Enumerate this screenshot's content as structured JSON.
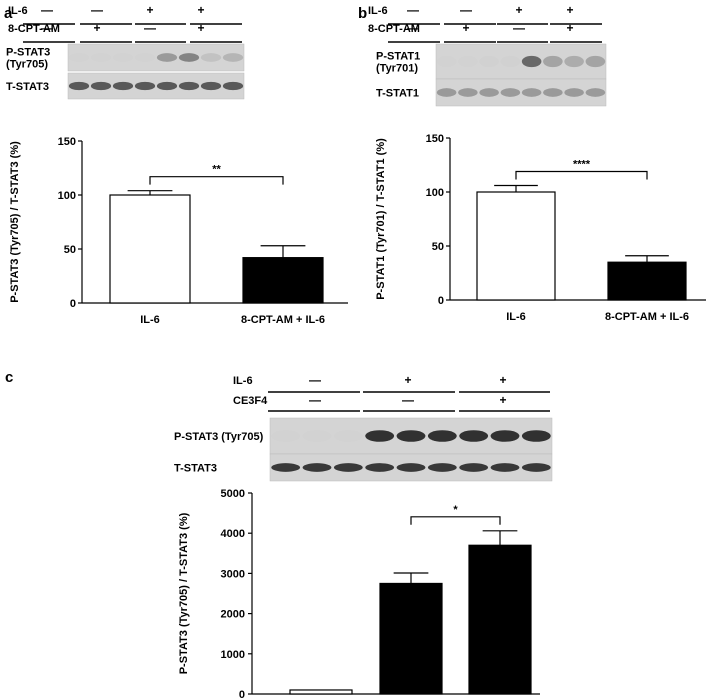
{
  "panels": [
    {
      "id": "a",
      "letter": "a",
      "conditions": [
        {
          "label": "IL-6",
          "signs": [
            "—",
            "—",
            "+",
            "+"
          ]
        },
        {
          "label": "8-CPT-AM",
          "signs": [
            "—",
            "+",
            "—",
            "+"
          ]
        }
      ],
      "blots": [
        {
          "label_lines": [
            "P-STAT3",
            "(Tyr705)"
          ],
          "intensities": [
            0.03,
            0.03,
            0.05,
            0.05,
            0.55,
            0.65,
            0.3,
            0.4
          ]
        },
        {
          "label_lines": [
            "T-STAT3"
          ],
          "intensities": [
            0.8,
            0.8,
            0.8,
            0.8,
            0.8,
            0.8,
            0.8,
            0.8
          ]
        }
      ]
    },
    {
      "id": "b",
      "letter": "b",
      "conditions": [
        {
          "label": "IL-6",
          "signs": [
            "—",
            "—",
            "+",
            "+"
          ]
        },
        {
          "label": "8-CPT-AM",
          "signs": [
            "—",
            "+",
            "—",
            "+"
          ]
        }
      ],
      "blots": [
        {
          "label_lines": [
            "P-STAT1",
            "(Tyr701)"
          ],
          "intensities": [
            0.05,
            0.05,
            0.08,
            0.08,
            0.75,
            0.5,
            0.45,
            0.5
          ]
        },
        {
          "label_lines": [
            "T-STAT1"
          ],
          "intensities": [
            0.55,
            0.55,
            0.55,
            0.55,
            0.55,
            0.55,
            0.55,
            0.55
          ]
        }
      ]
    },
    {
      "id": "c",
      "letter": "c",
      "conditions": [
        {
          "label": "IL-6",
          "signs": [
            "—",
            "+",
            "+"
          ]
        },
        {
          "label": "CE3F4",
          "signs": [
            "—",
            "—",
            "+"
          ]
        }
      ],
      "blots": [
        {
          "label_lines": [
            "P-STAT3 (Tyr705)"
          ],
          "intensities": [
            0.03,
            0.03,
            0.03,
            0.92,
            0.92,
            0.92,
            0.92,
            0.92,
            0.92
          ]
        },
        {
          "label_lines": [
            "T-STAT3"
          ],
          "intensities": [
            0.9,
            0.9,
            0.9,
            0.9,
            0.9,
            0.9,
            0.9,
            0.9,
            0.9
          ]
        }
      ]
    }
  ],
  "chart_data": [
    {
      "type": "bar",
      "panel": "a",
      "categories": [
        "IL-6",
        "8-CPT-AM + IL-6"
      ],
      "values": [
        100,
        42
      ],
      "errors": [
        4,
        11
      ],
      "fills": [
        "#ffffff",
        "#000000"
      ],
      "ylabel": "P-STAT3 (Tyr705) / T-STAT3 (%)",
      "ylim": [
        0,
        150
      ],
      "yticks": [
        0,
        50,
        100,
        150
      ],
      "significance": {
        "from": 0,
        "to": 1,
        "label": "**"
      }
    },
    {
      "type": "bar",
      "panel": "b",
      "categories": [
        "IL-6",
        "8-CPT-AM + IL-6"
      ],
      "values": [
        100,
        35
      ],
      "errors": [
        6,
        6
      ],
      "fills": [
        "#ffffff",
        "#000000"
      ],
      "ylabel": "P-STAT1 (Tyr701) / T-STAT1 (%)",
      "ylim": [
        0,
        150
      ],
      "yticks": [
        0,
        50,
        100,
        150
      ],
      "significance": {
        "from": 0,
        "to": 1,
        "label": "****"
      }
    },
    {
      "type": "bar",
      "panel": "c",
      "categories": [
        "",
        "",
        ""
      ],
      "values": [
        100,
        2750,
        3700
      ],
      "errors": [
        0,
        260,
        360
      ],
      "fills": [
        "#ffffff",
        "#000000",
        "#000000"
      ],
      "ylabel": "P-STAT3 (Tyr705) / T-STAT3 (%)",
      "ylim": [
        0,
        5000
      ],
      "yticks": [
        0,
        1000,
        2000,
        3000,
        4000,
        5000
      ],
      "significance": {
        "from": 1,
        "to": 2,
        "label": "*"
      }
    }
  ]
}
